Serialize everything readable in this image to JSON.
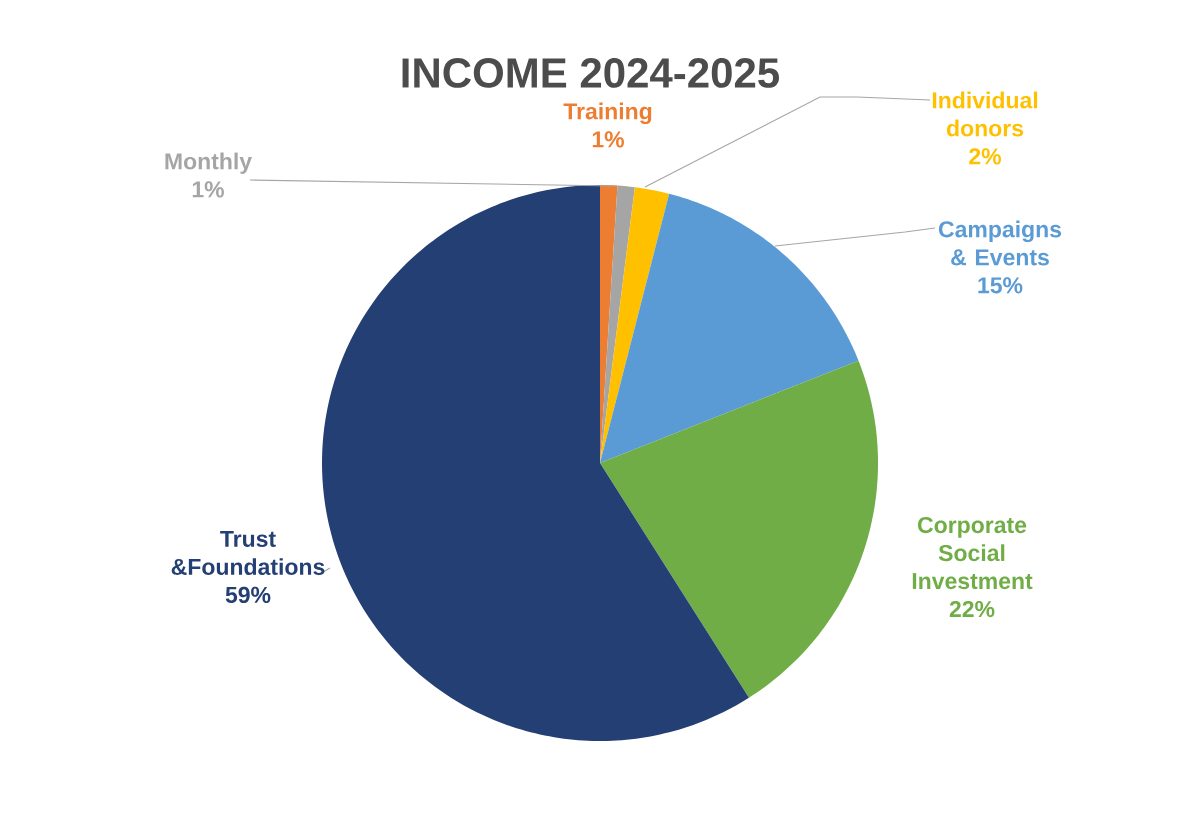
{
  "chart_data": {
    "type": "pie",
    "title": "INCOME 2024-2025",
    "categories": [
      "Training",
      "Monthly",
      "Individual donors",
      "Campaigns & Events",
      "Corporate Social Investment",
      "Trust &Foundations"
    ],
    "values": [
      1,
      1,
      2,
      15,
      22,
      59
    ],
    "value_labels": [
      "1%",
      "1%",
      "2%",
      "15%",
      "22%",
      "59%"
    ],
    "colors": [
      "#ed7d31",
      "#a5a5a5",
      "#ffc000",
      "#5b9bd5",
      "#70ad47",
      "#243f74"
    ]
  }
}
